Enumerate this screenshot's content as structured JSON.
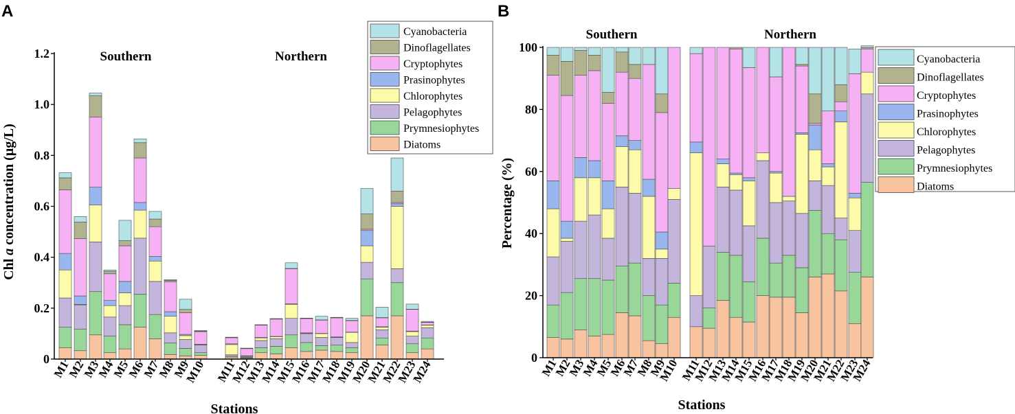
{
  "colors": {
    "Diatoms": "#f8c4a0",
    "Prymnesiophytes": "#99d69a",
    "Pelagophytes": "#c3b5dc",
    "Chlorophytes": "#fdfaa9",
    "Prasinophytes": "#9ab6ee",
    "Cryptophytes": "#f6b0f4",
    "Dinoflagellates": "#b1b38f",
    "Cyanobacteria": "#b3e3e6"
  },
  "chart_data": [
    {
      "panel": "A",
      "type": "bar",
      "stacked": true,
      "title": "",
      "xlabel": "Stations",
      "ylabel": "Chl a concentration (µg/L)",
      "ylabel_parts": [
        "Chl ",
        "a",
        " concentration (µg/L)"
      ],
      "ylim": [
        0,
        1.2
      ],
      "yticks": [
        "0",
        "0.2",
        "0.4",
        "0.6",
        "0.8",
        "1.0",
        "1.2"
      ],
      "group_labels": [
        "Southern",
        "Northern"
      ],
      "legend_title": "",
      "legend_order": [
        "Cyanobacteria",
        "Dinoflagellates",
        "Cryptophytes",
        "Prasinophytes",
        "Chlorophytes",
        "Pelagophytes",
        "Prymnesiophytes",
        "Diatoms"
      ],
      "categories": [
        "M1",
        "M2",
        "M3",
        "M4",
        "M5",
        "M6",
        "M7",
        "M8",
        "M9",
        "M10",
        "M11",
        "M12",
        "M13",
        "M14",
        "M15",
        "M16",
        "M17",
        "M18",
        "M19",
        "M20",
        "M21",
        "M22",
        "M23",
        "M24"
      ],
      "series": [
        {
          "name": "Diatoms",
          "values": [
            0.045,
            0.033,
            0.095,
            0.025,
            0.04,
            0.125,
            0.08,
            0.018,
            0.012,
            0.015,
            0.008,
            0.004,
            0.025,
            0.02,
            0.045,
            0.03,
            0.035,
            0.03,
            0.025,
            0.17,
            0.055,
            0.17,
            0.025,
            0.04
          ]
        },
        {
          "name": "Prymnesiophytes",
          "values": [
            0.08,
            0.085,
            0.17,
            0.065,
            0.095,
            0.13,
            0.095,
            0.045,
            0.03,
            0.01,
            0.004,
            0.003,
            0.02,
            0.03,
            0.05,
            0.035,
            0.018,
            0.025,
            0.02,
            0.145,
            0.028,
            0.13,
            0.035,
            0.043
          ]
        },
        {
          "name": "Pelagophytes",
          "values": [
            0.115,
            0.095,
            0.195,
            0.075,
            0.075,
            0.22,
            0.13,
            0.04,
            0.035,
            0.03,
            0.005,
            0.004,
            0.028,
            0.03,
            0.065,
            0.035,
            0.032,
            0.03,
            0.02,
            0.065,
            0.032,
            0.055,
            0.03,
            0.04
          ]
        },
        {
          "name": "Chlorophytes",
          "values": [
            0.11,
            0.002,
            0.145,
            0.045,
            0.05,
            0.11,
            0.08,
            0.065,
            0.015,
            0.002,
            0.04,
            0.001,
            0.01,
            0.008,
            0.055,
            0.002,
            0.015,
            0.001,
            0.04,
            0.065,
            0.01,
            0.245,
            0.018,
            0.01
          ]
        },
        {
          "name": "Prasinophytes",
          "values": [
            0.065,
            0.033,
            0.07,
            0.02,
            0.045,
            0.03,
            0.018,
            0.018,
            0.005,
            0.001,
            0.003,
            0.001,
            0.002,
            0.001,
            0.002,
            0.001,
            0.001,
            0.001,
            0.001,
            0.06,
            0.002,
            0.01,
            0.002,
            0.001
          ]
        },
        {
          "name": "Cryptophytes",
          "values": [
            0.25,
            0.225,
            0.275,
            0.105,
            0.14,
            0.175,
            0.117,
            0.118,
            0.085,
            0.05,
            0.024,
            0.028,
            0.048,
            0.068,
            0.138,
            0.056,
            0.052,
            0.075,
            0.045,
            0.005,
            0.035,
            0.005,
            0.085,
            0.01
          ]
        },
        {
          "name": "Dinoflagellates",
          "values": [
            0.047,
            0.065,
            0.085,
            0.01,
            0.02,
            0.06,
            0.03,
            0.005,
            0.013,
            0.002,
            0.001,
            0.001,
            0.001,
            0.001,
            0.001,
            0.001,
            0.001,
            0.001,
            0.001,
            0.06,
            0.001,
            0.045,
            0.001,
            0.001
          ]
        },
        {
          "name": "Cyanobacteria",
          "values": [
            0.02,
            0.022,
            0.01,
            0.005,
            0.08,
            0.015,
            0.03,
            0.003,
            0.04,
            0.002,
            0.001,
            0.001,
            0.001,
            0.001,
            0.022,
            0.001,
            0.014,
            0.001,
            0.008,
            0.1,
            0.041,
            0.13,
            0.02,
            0.003
          ]
        }
      ]
    },
    {
      "panel": "B",
      "type": "bar",
      "stacked": true,
      "title": "",
      "xlabel": "Stations",
      "ylabel": "Percentage (%)",
      "ylim": [
        0,
        100
      ],
      "yticks": [
        "0",
        "20",
        "40",
        "60",
        "80",
        "100"
      ],
      "group_labels": [
        "Southern",
        "Northern"
      ],
      "legend_order": [
        "Cyanobacteria",
        "Dinoflagellates",
        "Cryptophytes",
        "Prasinophytes",
        "Chlorophytes",
        "Pelagophytes",
        "Prymnesiophytes",
        "Diatoms"
      ],
      "categories": [
        "M1",
        "M2",
        "M3",
        "M4",
        "M5",
        "M6",
        "M7",
        "M8",
        "M9",
        "M10",
        "M11",
        "M12",
        "M13",
        "M14",
        "M15",
        "M16",
        "M17",
        "M18",
        "M19",
        "M20",
        "M21",
        "M22",
        "M23",
        "M24"
      ],
      "series": [
        {
          "name": "Diatoms",
          "values": [
            6.5,
            6,
            9,
            7,
            7.5,
            14.5,
            13.5,
            5.5,
            4.5,
            13,
            10,
            9.5,
            18.5,
            13,
            11.5,
            20,
            19.5,
            19.5,
            14.5,
            26,
            27,
            21.5,
            11,
            26
          ]
        },
        {
          "name": "Prymnesiophytes",
          "values": [
            10.5,
            15,
            16.5,
            18.5,
            17.5,
            15,
            17,
            14.5,
            12.5,
            11,
            0,
            6.5,
            15.5,
            20,
            13,
            18.5,
            11,
            13.5,
            14.5,
            21.5,
            13,
            16.5,
            16.5,
            30.5
          ]
        },
        {
          "name": "Pelagophytes",
          "values": [
            15.5,
            16.5,
            18.5,
            20.5,
            13.5,
            25.5,
            22.5,
            12,
            15,
            27,
            10,
            20,
            21,
            21,
            18,
            25,
            19.5,
            17.5,
            17.5,
            9.5,
            15.5,
            7,
            13.5,
            28.5
          ]
        },
        {
          "name": "Chlorophytes",
          "values": [
            15.5,
            1,
            14,
            12,
            9.5,
            13,
            14,
            20,
            3,
            3.5,
            46,
            0,
            7.5,
            5,
            14.5,
            2.5,
            9.5,
            1.5,
            25.5,
            10,
            6,
            31,
            10.5,
            7
          ]
        },
        {
          "name": "Prasinophytes",
          "values": [
            9,
            5.5,
            6.5,
            5.5,
            9,
            3.5,
            3,
            5.5,
            5.5,
            0,
            3.5,
            0,
            1.5,
            0.5,
            1,
            0,
            0.5,
            0,
            0.5,
            8,
            1,
            3.5,
            1.5,
            0
          ]
        },
        {
          "name": "Cryptophytes",
          "values": [
            34,
            40.5,
            26.5,
            29,
            25,
            20.5,
            20,
            37,
            38.5,
            45.5,
            28.5,
            64,
            36,
            40,
            35.5,
            34,
            30.5,
            48,
            21.5,
            0.5,
            17,
            3,
            38.5,
            7.5
          ]
        },
        {
          "name": "Dinoflagellates",
          "values": [
            6.5,
            11,
            8,
            5,
            3.5,
            6.5,
            4.5,
            0,
            6,
            0,
            0,
            0,
            0,
            0.5,
            0,
            0,
            0,
            0,
            0.5,
            9.5,
            0,
            5.5,
            0,
            0.5
          ]
        },
        {
          "name": "Cyanobacteria",
          "values": [
            2.5,
            4.5,
            1,
            2.5,
            14.5,
            1.5,
            5.5,
            5.5,
            15,
            0,
            2,
            0,
            0,
            0,
            6.5,
            0,
            9.5,
            0,
            5.5,
            15,
            20.5,
            12,
            8,
            0.5
          ]
        }
      ]
    }
  ]
}
